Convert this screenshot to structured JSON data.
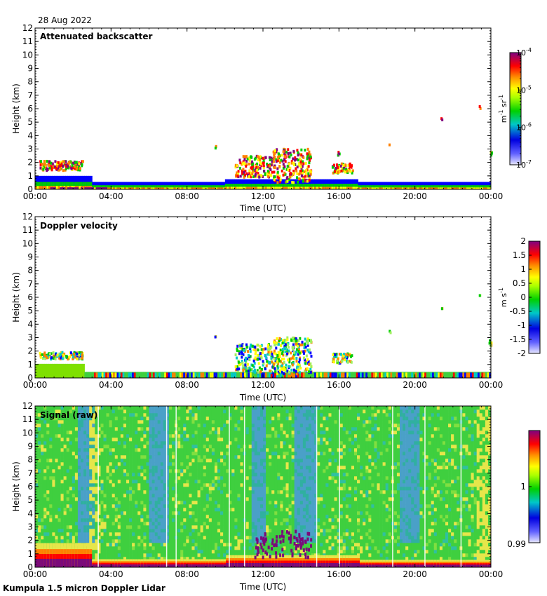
{
  "date": "28 Aug 2022",
  "footer": "Kumpula 1.5 micron Doppler Lidar",
  "colors": {
    "jet": [
      "#e0e0ff",
      "#0000ff",
      "#00c8c8",
      "#00cc00",
      "#ffff00",
      "#ff8000",
      "#ff0000",
      "#800080"
    ],
    "signal_bg": "#3fcf3f",
    "signal_blue": "#4aa0c8",
    "signal_yellow": "#e6e64a",
    "signal_purple": "#7a0a7a"
  },
  "chart_data": [
    {
      "type": "heatmap",
      "title": "Attenuated backscatter",
      "xlabel": "Time (UTC)",
      "ylabel": "Height (km)",
      "xlim": [
        0,
        24
      ],
      "ylim": [
        0,
        12
      ],
      "xticks": [
        "00:00",
        "04:00",
        "08:00",
        "12:00",
        "16:00",
        "20:00",
        "00:00"
      ],
      "yticks": [
        "0",
        "1",
        "2",
        "3",
        "4",
        "5",
        "6",
        "7",
        "8",
        "9",
        "10",
        "11",
        "12"
      ],
      "colorbar": {
        "scale": "log",
        "range": [
          1e-07,
          0.0001
        ],
        "ticks": [
          {
            "base": "10",
            "exp": "-4",
            "value": -4
          },
          {
            "base": "10",
            "exp": "-5",
            "value": -5
          },
          {
            "base": "10",
            "exp": "-6",
            "value": -6
          },
          {
            "base": "10",
            "exp": "-7",
            "value": -7
          }
        ],
        "unit": "m-1 sr-1",
        "unit_parts": [
          "m",
          "-1",
          " sr",
          "-1"
        ]
      },
      "features": [
        {
          "desc": "boundary layer band",
          "t": [
            0,
            24
          ],
          "h": [
            0.0,
            1.0
          ]
        },
        {
          "desc": "cloud layer",
          "t": [
            0.2,
            2.5
          ],
          "h": [
            1.5,
            2.2
          ]
        },
        {
          "desc": "convective clouds",
          "t": [
            10.5,
            14.5
          ],
          "h": [
            0.5,
            3.1
          ]
        },
        {
          "desc": "scattered clouds",
          "t": [
            15.6,
            16.7
          ],
          "h": [
            1.3,
            2.9
          ]
        }
      ]
    },
    {
      "type": "heatmap",
      "title": "Doppler velocity",
      "xlabel": "Time (UTC)",
      "ylabel": "Height (km)",
      "xlim": [
        0,
        24
      ],
      "ylim": [
        0,
        12
      ],
      "xticks": [
        "00:00",
        "04:00",
        "08:00",
        "12:00",
        "16:00",
        "20:00",
        "00:00"
      ],
      "yticks": [
        "0",
        "1",
        "2",
        "3",
        "4",
        "5",
        "6",
        "7",
        "8",
        "9",
        "10",
        "11",
        "12"
      ],
      "colorbar": {
        "scale": "linear",
        "range": [
          -2,
          2
        ],
        "ticks": [
          "2",
          "1.5",
          "1",
          "0.5",
          "0",
          "-0.5",
          "-1",
          "-1.5",
          "-2"
        ],
        "unit": "m s-1",
        "unit_parts": [
          "m s",
          "-1"
        ]
      }
    },
    {
      "type": "heatmap",
      "title": "Signal (raw)",
      "xlabel": "Time (UTC)",
      "ylabel": "Height (km)",
      "xlim": [
        0,
        24
      ],
      "ylim": [
        0,
        12
      ],
      "xticks": [
        "00:00",
        "04:00",
        "08:00",
        "12:00",
        "16:00",
        "20:00",
        "00:00"
      ],
      "yticks": [
        "0",
        "1",
        "2",
        "3",
        "4",
        "5",
        "6",
        "7",
        "8",
        "9",
        "10",
        "11",
        "12"
      ],
      "colorbar": {
        "scale": "linear",
        "range": [
          0.99,
          1.01
        ],
        "ticks": [
          "1",
          "0.99"
        ]
      }
    }
  ]
}
